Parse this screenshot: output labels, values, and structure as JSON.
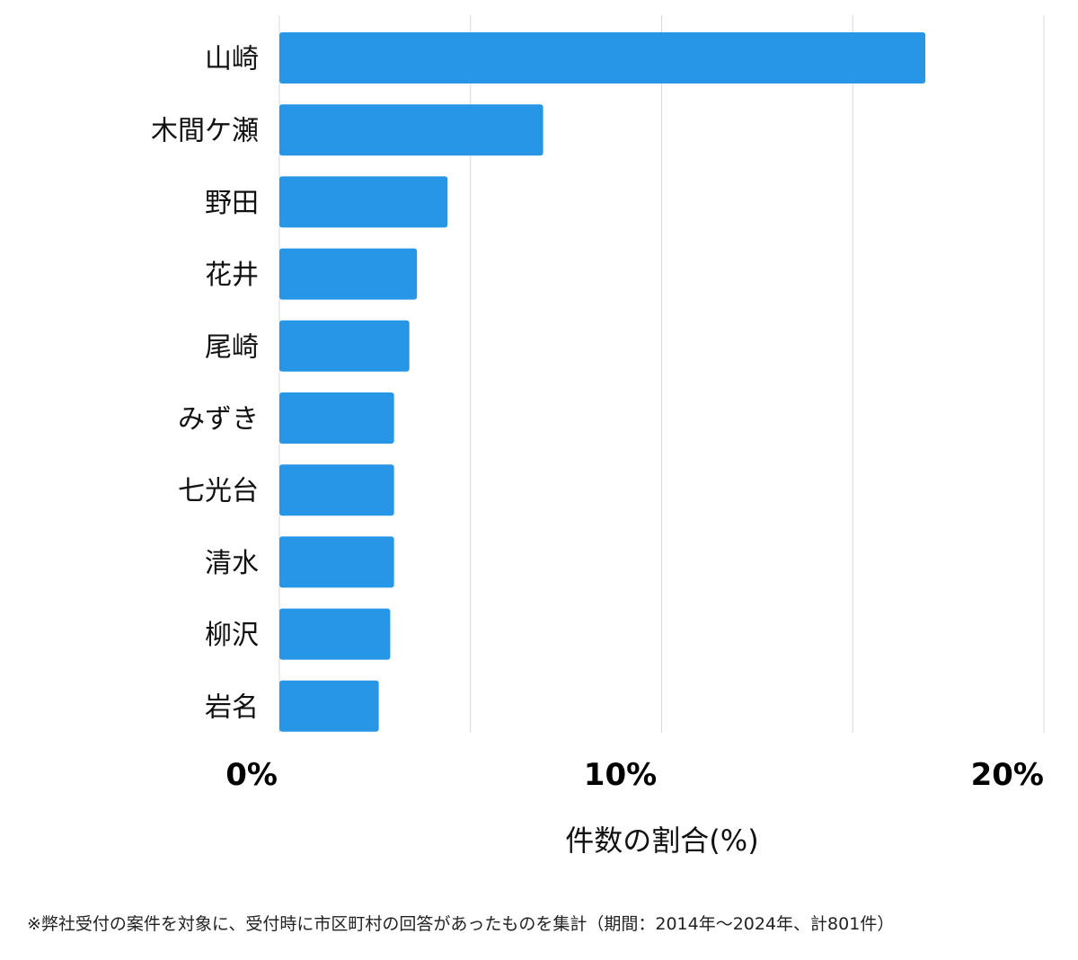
{
  "chart_data": {
    "type": "bar",
    "orientation": "horizontal",
    "categories": [
      "山崎",
      "木間ケ瀬",
      "野田",
      "花井",
      "尾崎",
      "みずき",
      "七光台",
      "清水",
      "柳沢",
      "岩名"
    ],
    "values": [
      16.9,
      6.9,
      4.4,
      3.6,
      3.4,
      3.0,
      3.0,
      3.0,
      2.9,
      2.6
    ],
    "unit": "%",
    "xlabel": "件数の割合(%)",
    "ylabel": "",
    "title": "",
    "xlim": [
      0,
      20
    ],
    "tick_values": [
      0,
      10,
      20
    ],
    "tick_labels": [
      "0%",
      "10%",
      "20%"
    ],
    "grid": true,
    "bar_color": "#2896e6"
  },
  "footnote": "※弊社受付の案件を対象に、受付時に市区町村の回答があったものを集計（期間：2014年～2024年、計801件）"
}
